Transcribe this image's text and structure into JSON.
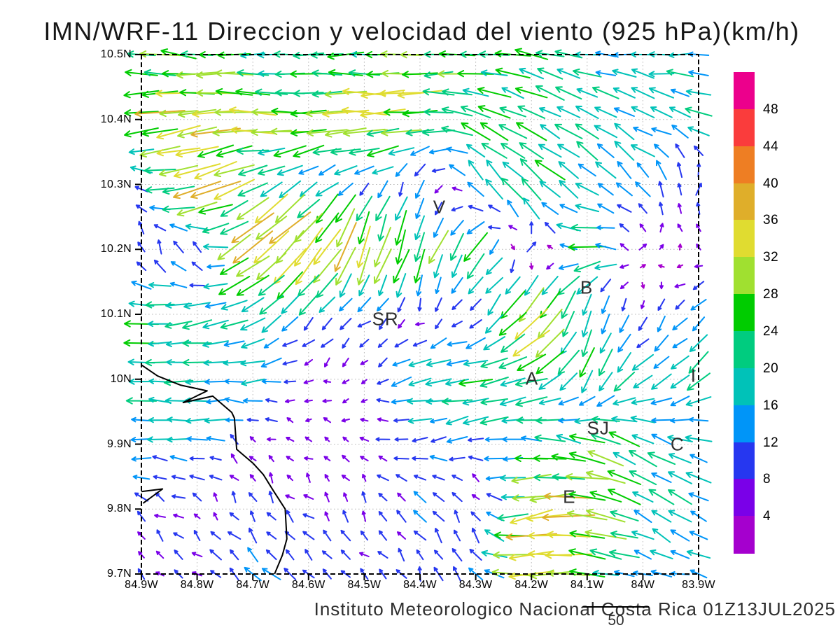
{
  "title": "IMN/WRF-11 Direccion y velocidad del viento (925 hPa)(km/h)",
  "footer": {
    "credit": "Instituto Meteorologico Nacional Costa Rica 01Z13JUL2025",
    "reference_vector_label": "50"
  },
  "chart_data": {
    "type": "vector_field",
    "title": "IMN/WRF-11 Direccion y velocidad del viento (925 hPa)(km/h)",
    "units": "km/h",
    "x_ticks": [
      "84.9W",
      "84.8W",
      "84.7W",
      "84.6W",
      "84.5W",
      "84.4W",
      "84.3W",
      "84.2W",
      "84.1W",
      "84W",
      "83.9W"
    ],
    "y_ticks": [
      "10.5N",
      "10.4N",
      "10.3N",
      "10.2N",
      "10.1N",
      "10N",
      "9.9N",
      "9.8N",
      "9.7N"
    ],
    "lon_range": [
      -84.9,
      -83.9
    ],
    "lat_range": [
      9.7,
      10.5
    ],
    "grid_on": true,
    "reference_speed": 50,
    "colorbar": {
      "position": "right",
      "levels": [
        4,
        8,
        12,
        16,
        20,
        24,
        28,
        32,
        36,
        40,
        44,
        48
      ],
      "colors": [
        "#A500CE",
        "#7A00E8",
        "#2637F0",
        "#0095F8",
        "#00C2B8",
        "#00CC7F",
        "#00CC00",
        "#A0E030",
        "#E0DC30",
        "#DFAE2A",
        "#EE7E23",
        "#FA3C3C",
        "#EC008C"
      ]
    },
    "wind_grid": {
      "lats": [
        10.5,
        10.4,
        10.3,
        10.2,
        10.1,
        10.0,
        9.9,
        9.8,
        9.7
      ],
      "lons": [
        -84.9,
        -84.8,
        -84.7,
        -84.6,
        -84.5,
        -84.4,
        -84.3,
        -84.2,
        -84.1,
        -84.0,
        -83.9
      ],
      "u": [
        [
          -24,
          -26,
          -20,
          -24,
          -22,
          -26,
          -24,
          -20,
          -18,
          -16,
          -16
        ],
        [
          -30,
          -34,
          -30,
          -26,
          -32,
          -28,
          -20,
          -18,
          -16,
          -14,
          -18
        ],
        [
          -10,
          -38,
          -20,
          -12,
          -8,
          -4,
          -8,
          -20,
          -12,
          -10,
          4
        ],
        [
          -2,
          -6,
          -30,
          -25,
          -10,
          -8,
          -14,
          10,
          -26,
          4,
          -4
        ],
        [
          -22,
          -18,
          -16,
          -10,
          -8,
          -4,
          -4,
          -25,
          -4,
          -2,
          -10
        ],
        [
          -20,
          -18,
          -16,
          -6,
          -4,
          -18,
          -22,
          -22,
          -8,
          -16,
          -14
        ],
        [
          -16,
          -14,
          -4,
          -4,
          -6,
          -12,
          -12,
          -18,
          -22,
          -18,
          -16
        ],
        [
          -8,
          -4,
          -4,
          -6,
          -4,
          -8,
          -2,
          -30,
          -33,
          -16,
          -14
        ],
        [
          -4,
          -6,
          -10,
          -8,
          -6,
          -4,
          -8,
          -34,
          -26,
          -12,
          -14
        ]
      ],
      "v": [
        [
          2,
          3,
          0,
          -2,
          0,
          -3,
          0,
          4,
          2,
          0,
          0
        ],
        [
          -4,
          -5,
          2,
          0,
          0,
          -2,
          8,
          10,
          10,
          8,
          6
        ],
        [
          4,
          -16,
          -8,
          -10,
          -8,
          -10,
          14,
          18,
          10,
          12,
          10
        ],
        [
          8,
          10,
          -25,
          -30,
          -32,
          -25,
          -20,
          6,
          -2,
          4,
          2
        ],
        [
          2,
          -4,
          -8,
          -10,
          -6,
          -4,
          -6,
          -30,
          -20,
          -8,
          -10
        ],
        [
          2,
          0,
          -2,
          -2,
          -2,
          -4,
          -4,
          -6,
          -18,
          -12,
          -12
        ],
        [
          0,
          2,
          4,
          2,
          2,
          0,
          -2,
          2,
          8,
          10,
          4
        ],
        [
          4,
          4,
          6,
          6,
          6,
          8,
          8,
          -6,
          2,
          10,
          8
        ],
        [
          6,
          6,
          10,
          8,
          6,
          8,
          10,
          -4,
          4,
          2,
          4
        ]
      ]
    },
    "cities": [
      {
        "label": "V",
        "lon": -84.365,
        "lat": 10.265
      },
      {
        "label": "B",
        "lon": -84.101,
        "lat": 10.141
      },
      {
        "label": "SR",
        "lon": -84.462,
        "lat": 10.092
      },
      {
        "label": "A",
        "lon": -84.199,
        "lat": 10.001
      },
      {
        "label": "I",
        "lon": -83.909,
        "lat": 10.005
      },
      {
        "label": "SJ",
        "lon": -84.08,
        "lat": 9.924
      },
      {
        "label": "C",
        "lon": -83.938,
        "lat": 9.899
      },
      {
        "label": "E",
        "lon": -84.132,
        "lat": 9.819
      }
    ],
    "coastline": [
      [
        [
          -84.9,
          10.022
        ],
        [
          -84.871,
          10.005
        ],
        [
          -84.83,
          9.991
        ],
        [
          -84.782,
          9.982
        ],
        [
          -84.825,
          9.964
        ],
        [
          -84.772,
          9.974
        ],
        [
          -84.738,
          9.949
        ],
        [
          -84.733,
          9.94
        ],
        [
          -84.729,
          9.892
        ],
        [
          -84.699,
          9.87
        ],
        [
          -84.681,
          9.853
        ],
        [
          -84.663,
          9.828
        ],
        [
          -84.642,
          9.8
        ],
        [
          -84.639,
          9.754
        ],
        [
          -84.647,
          9.729
        ],
        [
          -84.661,
          9.7
        ]
      ],
      [
        [
          -84.9,
          9.827
        ],
        [
          -84.862,
          9.831
        ],
        [
          -84.897,
          9.809
        ]
      ]
    ]
  }
}
